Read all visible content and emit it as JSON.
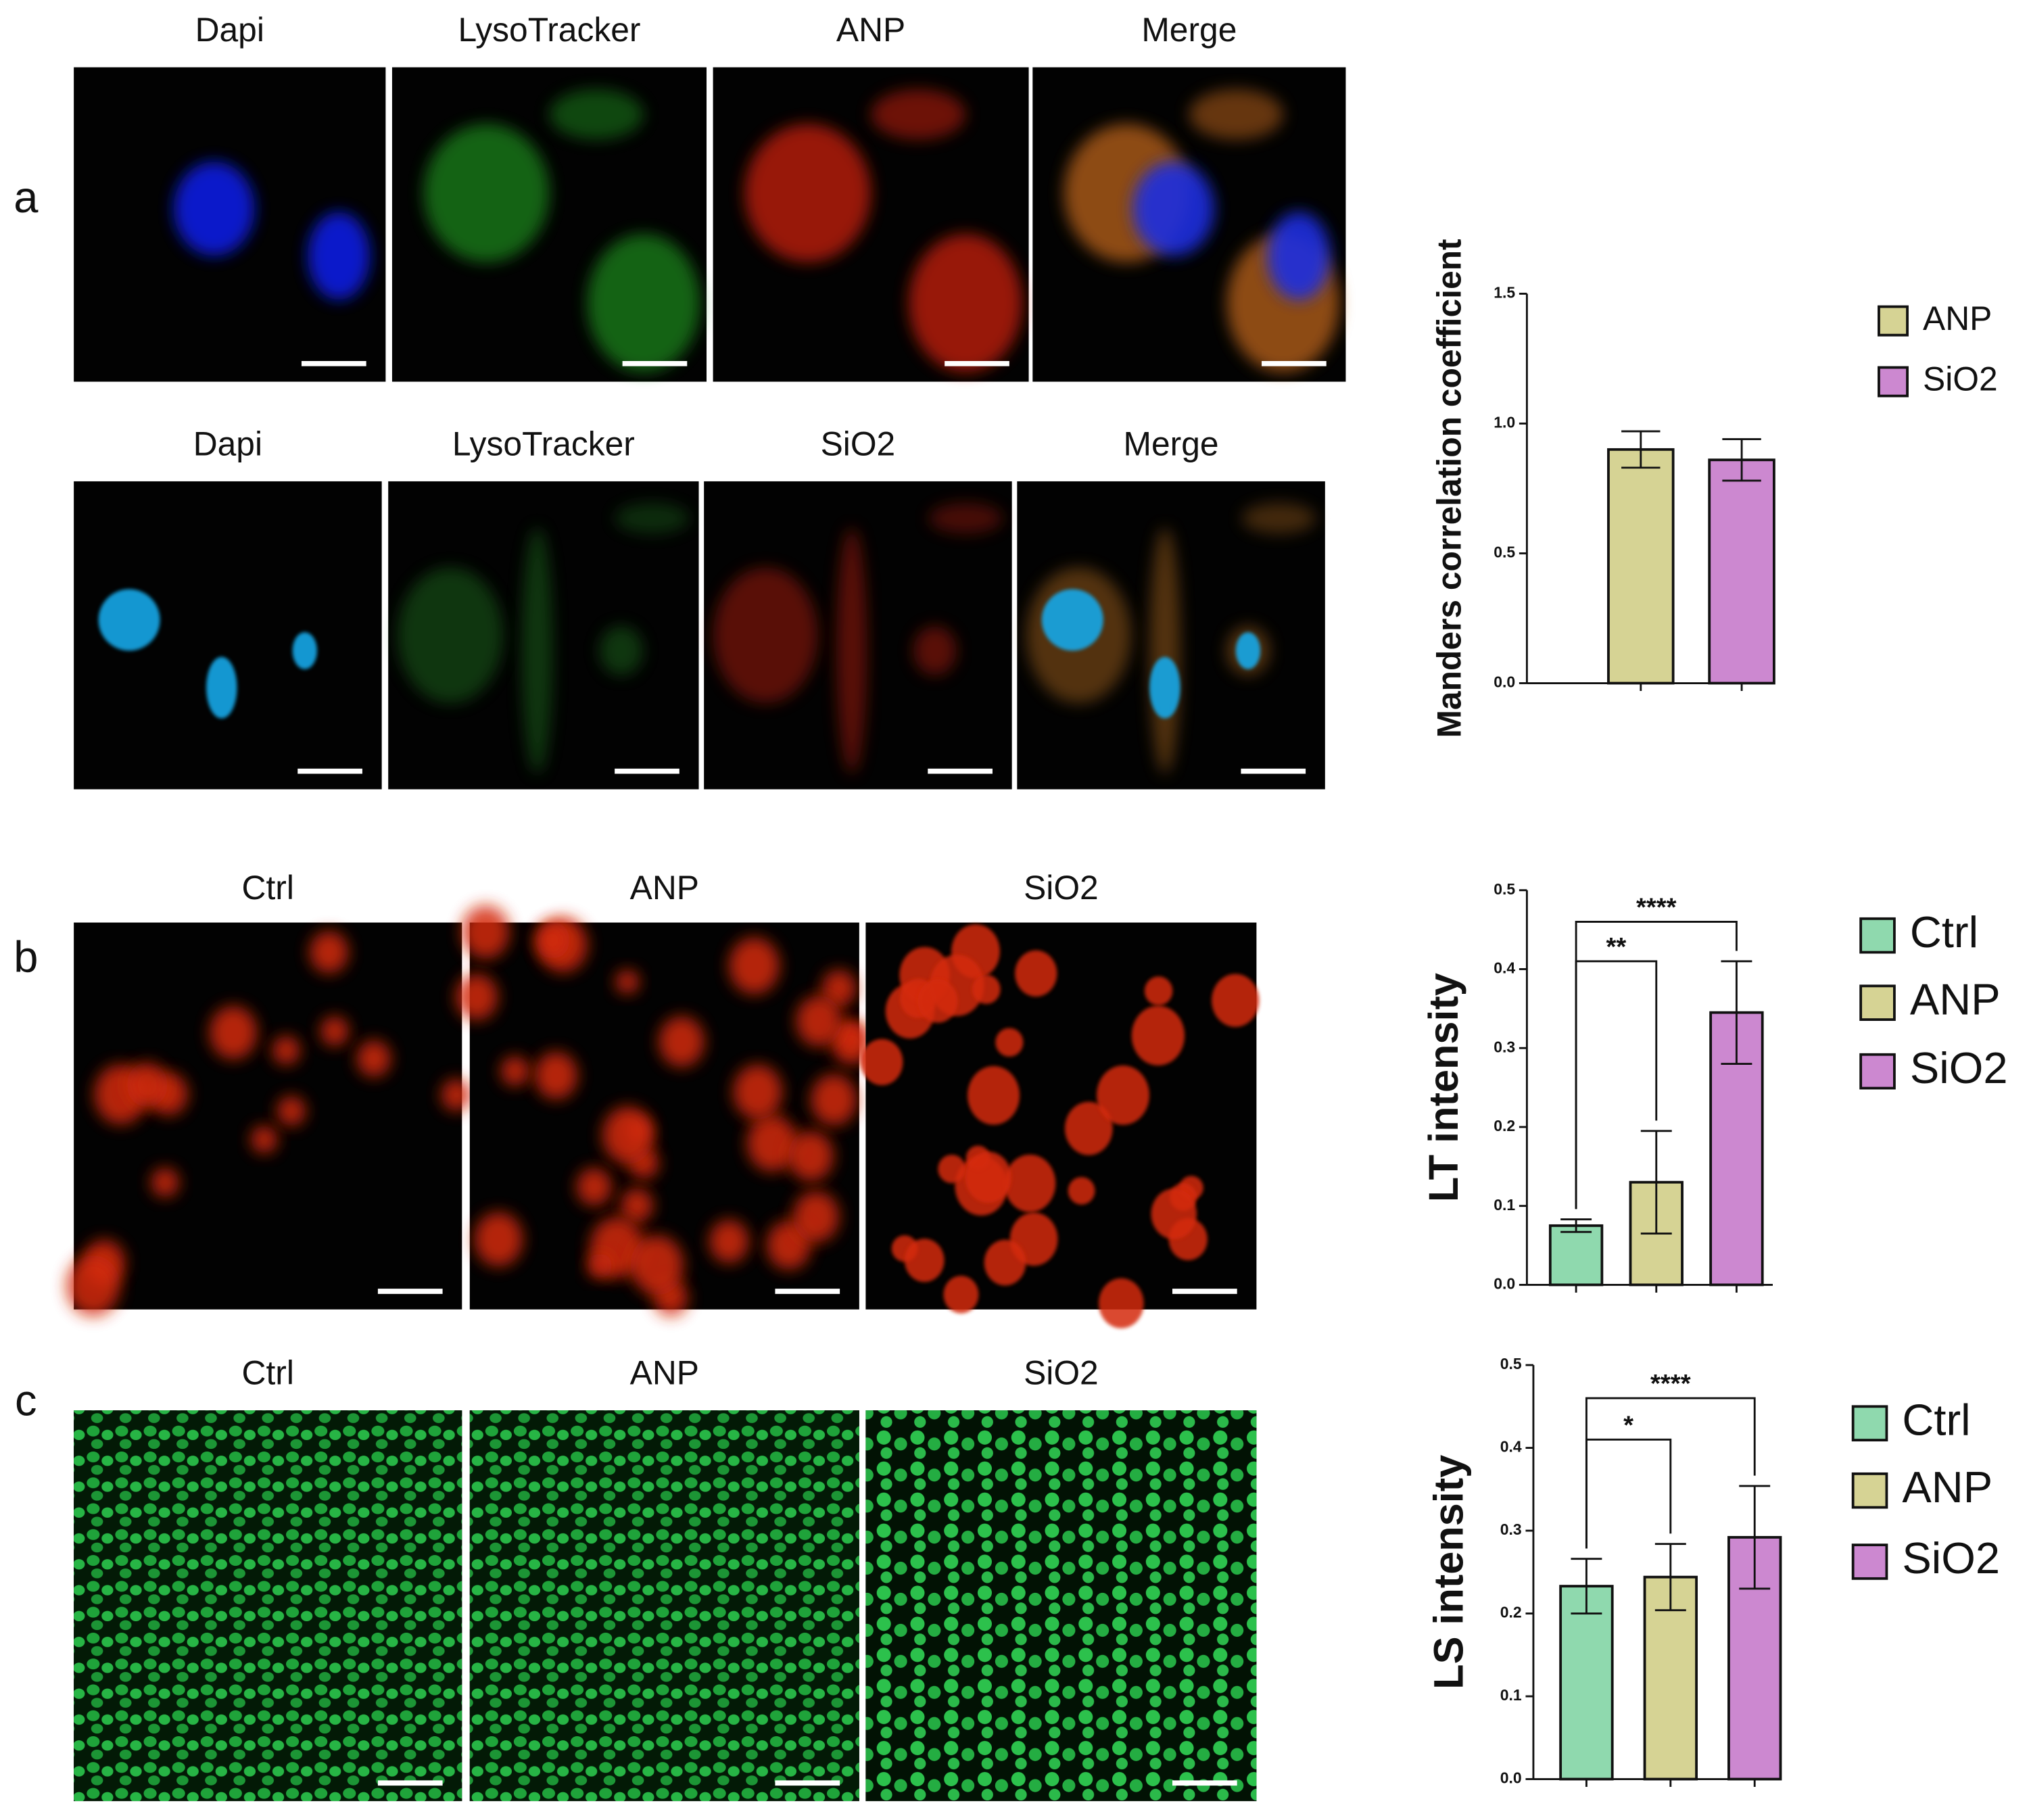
{
  "figure": {
    "panel_labels": [
      "a",
      "b",
      "c"
    ],
    "row_a1_titles": [
      "Dapi",
      "LysoTracker",
      "ANP",
      "Merge"
    ],
    "row_a2_titles": [
      "Dapi",
      "LysoTracker",
      "SiO2",
      "Merge"
    ],
    "row_b_titles": [
      "Ctrl",
      "ANP",
      "SiO2"
    ],
    "row_c_titles": [
      "Ctrl",
      "ANP",
      "SiO2"
    ]
  },
  "chart_data": [
    {
      "type": "bar",
      "y_label": "Manders correlation coefficient",
      "categories": [
        "ANP",
        "SiO2"
      ],
      "values": [
        0.9,
        0.86
      ],
      "errors": [
        0.07,
        0.08
      ],
      "colors": [
        "#d6d394",
        "#cc88d0"
      ],
      "ylim": [
        0,
        1.5
      ],
      "yticks": [
        {
          "value": 0,
          "label": "0.0"
        },
        0.5,
        {
          "value": 1,
          "label": "1.0"
        },
        1.5
      ],
      "legend": "right",
      "significance": []
    },
    {
      "type": "bar",
      "y_label": "LT intensity",
      "categories": [
        "Ctrl",
        "ANP",
        "SiO2"
      ],
      "values": [
        0.075,
        0.13,
        0.345
      ],
      "errors": [
        0.008,
        0.065,
        0.065
      ],
      "colors": [
        "#8fd9ae",
        "#d6d394",
        "#cc88d0"
      ],
      "ylim": [
        0,
        0.5
      ],
      "yticks": [
        {
          "value": 0,
          "label": "0.0"
        },
        0.1,
        0.2,
        0.3,
        0.4,
        0.5
      ],
      "legend": "right",
      "significance": [
        {
          "text": "**",
          "between": [
            "Ctrl",
            "ANP"
          ]
        },
        {
          "text": "****",
          "between": [
            "Ctrl",
            "SiO2"
          ]
        }
      ]
    },
    {
      "type": "bar",
      "y_label": "LS intensity",
      "categories": [
        "Ctrl",
        "ANP",
        "SiO2"
      ],
      "values": [
        0.233,
        0.244,
        0.292
      ],
      "errors": [
        0.033,
        0.04,
        0.062
      ],
      "colors": [
        "#8fd9ae",
        "#d6d394",
        "#cc88d0"
      ],
      "ylim": [
        0,
        0.5
      ],
      "yticks": [
        {
          "value": 0,
          "label": "0.0"
        },
        0.1,
        0.2,
        0.3,
        0.4,
        0.5
      ],
      "legend": "right",
      "significance": [
        {
          "text": "*",
          "between": [
            "Ctrl",
            "ANP"
          ]
        },
        {
          "text": "****",
          "between": [
            "Ctrl",
            "SiO2"
          ]
        }
      ]
    }
  ]
}
